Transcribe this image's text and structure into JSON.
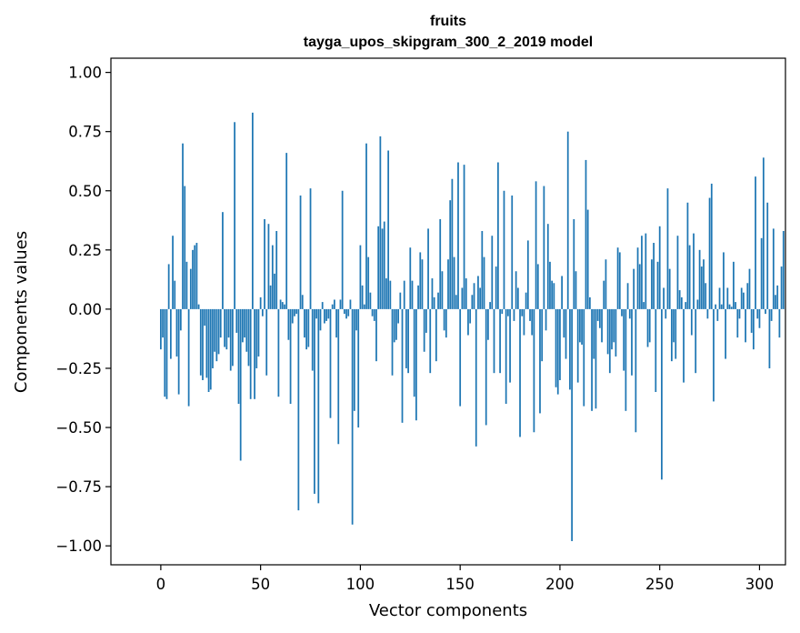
{
  "chart_data": {
    "type": "bar",
    "title": "fruits",
    "subtitle": "tayga_upos_skipgram_300_2_2019 model",
    "xlabel": "Vector components",
    "ylabel": "Components values",
    "xlim": [
      -25,
      313
    ],
    "ylim": [
      -1.08,
      1.06
    ],
    "xticks": [
      0,
      50,
      100,
      150,
      200,
      250,
      300
    ],
    "yticks": [
      1.0,
      0.75,
      0.5,
      0.25,
      0.0,
      -0.25,
      -0.5,
      -0.75,
      -1.0
    ],
    "xtick_labels": [
      "0",
      "50",
      "100",
      "150",
      "200",
      "250",
      "300"
    ],
    "ytick_labels": [
      "1.00",
      "0.75",
      "0.50",
      "0.25",
      "0.00",
      "−0.25",
      "−0.50",
      "−0.75",
      "−1.00"
    ],
    "color": "#1f77b4",
    "grid": false,
    "values": [
      -0.17,
      -0.12,
      -0.37,
      -0.38,
      0.19,
      -0.21,
      0.31,
      0.12,
      -0.2,
      -0.36,
      -0.09,
      0.7,
      0.52,
      0.2,
      -0.41,
      0.17,
      0.25,
      0.27,
      0.28,
      0.02,
      -0.28,
      -0.3,
      -0.07,
      -0.29,
      -0.35,
      -0.34,
      -0.25,
      -0.18,
      -0.22,
      -0.19,
      -0.12,
      0.41,
      -0.16,
      -0.17,
      -0.12,
      -0.26,
      -0.24,
      0.79,
      -0.1,
      -0.4,
      -0.64,
      -0.14,
      -0.12,
      -0.18,
      -0.24,
      -0.38,
      0.83,
      -0.38,
      -0.25,
      -0.2,
      0.05,
      -0.03,
      0.38,
      -0.28,
      0.36,
      0.1,
      0.27,
      0.15,
      0.33,
      -0.37,
      0.04,
      0.03,
      0.02,
      0.66,
      -0.13,
      -0.4,
      -0.06,
      -0.03,
      -0.02,
      -0.85,
      0.48,
      0.06,
      -0.12,
      -0.17,
      -0.16,
      0.51,
      -0.26,
      -0.78,
      -0.04,
      -0.82,
      -0.09,
      0.03,
      -0.06,
      -0.05,
      -0.04,
      -0.46,
      0.02,
      0.04,
      -0.12,
      -0.57,
      0.04,
      0.5,
      -0.02,
      -0.04,
      -0.03,
      0.04,
      -0.91,
      -0.43,
      -0.09,
      -0.5,
      0.27,
      0.1,
      0.02,
      0.7,
      0.22,
      0.07,
      -0.03,
      -0.05,
      -0.22,
      0.35,
      0.73,
      0.34,
      0.37,
      0.13,
      0.67,
      0.12,
      -0.28,
      -0.14,
      -0.13,
      -0.06,
      0.07,
      -0.48,
      0.12,
      -0.25,
      -0.27,
      0.26,
      0.12,
      -0.37,
      -0.47,
      0.1,
      0.24,
      0.21,
      -0.18,
      -0.1,
      0.34,
      -0.27,
      0.13,
      0.05,
      -0.22,
      0.07,
      0.38,
      0.16,
      -0.09,
      -0.12,
      0.21,
      0.46,
      0.55,
      0.22,
      0.06,
      0.62,
      -0.41,
      0.09,
      0.61,
      0.13,
      -0.11,
      -0.06,
      0.06,
      0.11,
      -0.58,
      0.14,
      0.09,
      0.33,
      0.22,
      -0.49,
      -0.13,
      0.03,
      0.31,
      -0.27,
      0.18,
      0.62,
      -0.27,
      -0.02,
      0.5,
      -0.4,
      -0.03,
      -0.31,
      0.48,
      -0.05,
      0.16,
      0.09,
      -0.54,
      -0.03,
      -0.11,
      0.07,
      0.29,
      -0.05,
      -0.11,
      -0.52,
      0.54,
      0.19,
      -0.44,
      -0.22,
      0.52,
      -0.09,
      0.36,
      0.2,
      0.12,
      0.11,
      -0.33,
      -0.36,
      -0.3,
      0.14,
      -0.12,
      -0.21,
      0.75,
      -0.34,
      -0.98,
      0.38,
      0.16,
      -0.31,
      -0.14,
      -0.15,
      -0.41,
      0.63,
      0.42,
      0.05,
      -0.43,
      -0.21,
      -0.42,
      -0.05,
      -0.08,
      -0.14,
      0.12,
      0.21,
      -0.19,
      -0.27,
      -0.17,
      -0.14,
      -0.2,
      0.26,
      0.24,
      -0.03,
      -0.26,
      -0.43,
      0.11,
      -0.04,
      -0.28,
      0.17,
      -0.52,
      0.26,
      0.19,
      0.31,
      0.03,
      0.32,
      -0.16,
      -0.14,
      0.21,
      0.28,
      -0.35,
      0.2,
      0.35,
      -0.72,
      0.09,
      -0.04,
      0.51,
      0.17,
      -0.22,
      -0.14,
      -0.21,
      0.31,
      0.08,
      0.05,
      -0.31,
      0.03,
      0.45,
      0.27,
      -0.11,
      0.32,
      -0.27,
      0.04,
      0.25,
      0.18,
      0.21,
      0.11,
      -0.04,
      0.47,
      0.53,
      -0.39,
      0.02,
      -0.05,
      0.09,
      0.02,
      0.24,
      -0.21,
      0.09,
      0.02,
      0.01,
      0.2,
      0.03,
      -0.12,
      -0.04,
      0.09,
      0.07,
      -0.14,
      0.11,
      0.17,
      -0.1,
      -0.17,
      0.56,
      -0.04,
      -0.08,
      0.3,
      0.64,
      -0.02,
      0.45,
      -0.25,
      -0.05,
      0.34,
      0.06,
      0.1,
      -0.12,
      0.18,
      0.33
    ]
  }
}
